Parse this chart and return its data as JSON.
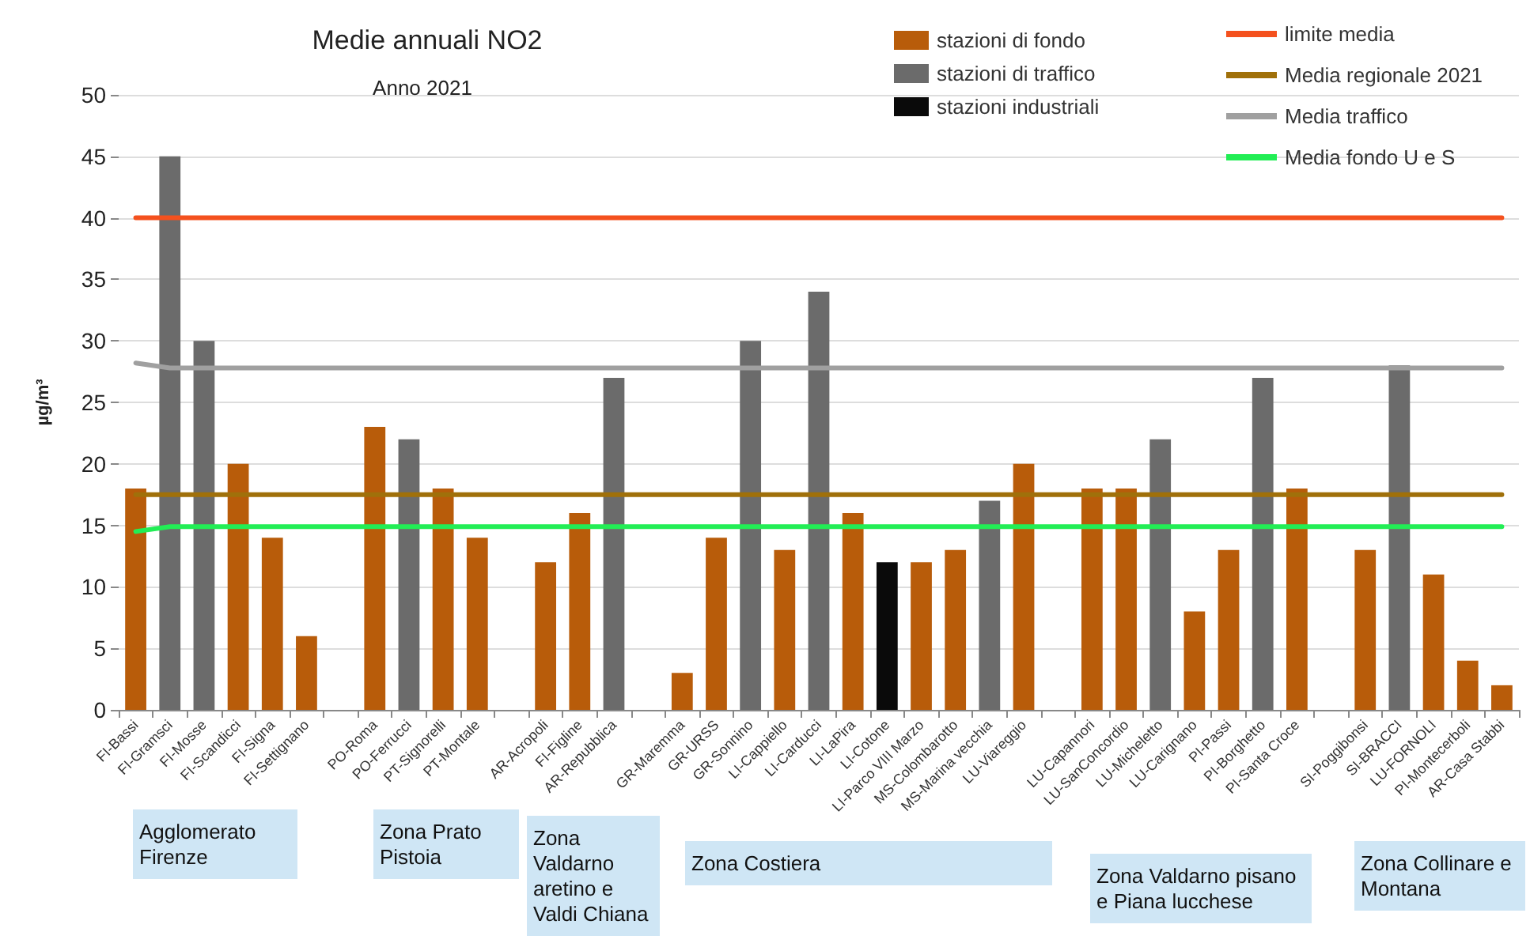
{
  "chart_data": {
    "type": "bar",
    "title": "Medie annuali NO2",
    "subtitle": "Anno 2021",
    "ylabel": "µg/m³",
    "categories": [
      "FI-Bassi",
      "FI-Gramsci",
      "FI-Mosse",
      "FI-Scandicci",
      "FI-Signa",
      "FI-Settignano",
      null,
      "PO-Roma",
      "PO-Ferrucci",
      "PT-Signorelli",
      "PT-Montale",
      null,
      "AR-Acropoli",
      "FI-Figline",
      "AR-Repubblica",
      null,
      "GR-Maremma",
      "GR-URSS",
      "GR-Sonnino",
      "LI-Cappiello",
      "LI-Carducci",
      "LI-LaPira",
      "LI-Cotone",
      "LI-Parco VIII Marzo",
      "MS-Colombarotto",
      "MS-Marina vecchia",
      "LU-Viareggio",
      null,
      "LU-Capannori",
      "LU-SanConcordio",
      "LU-Micheletto",
      "LU-Carignano",
      "PI-Passi",
      "PI-Borghetto",
      "PI-Santa Croce",
      null,
      "SI-Poggibonsi",
      "SI-BRACCI",
      "LU-FORNOLI",
      "PI-Montecerboli",
      "AR-Casa Stabbi"
    ],
    "series": [
      {
        "name": "stazioni di fondo",
        "color": "#b85c0a",
        "values": [
          18,
          null,
          null,
          20,
          14,
          6,
          null,
          23,
          null,
          18,
          14,
          null,
          12,
          16,
          null,
          null,
          3,
          14,
          null,
          13,
          null,
          16,
          null,
          12,
          13,
          null,
          20,
          null,
          18,
          18,
          null,
          8,
          13,
          null,
          18,
          null,
          13,
          null,
          11,
          4,
          2
        ]
      },
      {
        "name": "stazioni di traffico",
        "color": "#6b6b6b",
        "values": [
          null,
          45,
          30,
          null,
          null,
          null,
          null,
          null,
          22,
          null,
          null,
          null,
          null,
          null,
          27,
          null,
          null,
          null,
          30,
          null,
          34,
          null,
          null,
          null,
          null,
          17,
          null,
          null,
          null,
          null,
          22,
          null,
          null,
          27,
          null,
          null,
          null,
          28,
          null,
          null,
          null
        ]
      },
      {
        "name": "stazioni industriali",
        "color": "#0a0a0a",
        "values": [
          null,
          null,
          null,
          null,
          null,
          null,
          null,
          null,
          null,
          null,
          null,
          null,
          null,
          null,
          null,
          null,
          null,
          null,
          null,
          null,
          null,
          null,
          12,
          null,
          null,
          null,
          null,
          null,
          null,
          null,
          null,
          null,
          null,
          null,
          null,
          null,
          null,
          null,
          null,
          null,
          null
        ]
      },
      {
        "name": "limite media",
        "type": "line",
        "color": "#f4511e",
        "values": [
          40,
          40,
          40,
          40,
          40,
          40,
          40,
          40,
          40,
          40,
          40,
          40,
          40,
          40,
          40,
          40,
          40,
          40,
          40,
          40,
          40,
          40,
          40,
          40,
          40,
          40,
          40,
          40,
          40,
          40,
          40,
          40,
          40,
          40,
          40,
          40,
          40,
          40,
          40,
          40,
          40
        ]
      },
      {
        "name": "Media regionale 2021",
        "type": "line",
        "color": "#a0700a",
        "values": [
          17.5,
          17.5,
          17.5,
          17.5,
          17.5,
          17.5,
          17.5,
          17.5,
          17.5,
          17.5,
          17.5,
          17.5,
          17.5,
          17.5,
          17.5,
          17.5,
          17.5,
          17.5,
          17.5,
          17.5,
          17.5,
          17.5,
          17.5,
          17.5,
          17.5,
          17.5,
          17.5,
          17.5,
          17.5,
          17.5,
          17.5,
          17.5,
          17.5,
          17.5,
          17.5,
          17.5,
          17.5,
          17.5,
          17.5,
          17.5,
          17.5
        ]
      },
      {
        "name": "Media traffico",
        "type": "line",
        "color": "#a0a0a0",
        "values": [
          28.2,
          27.8,
          27.8,
          27.8,
          27.8,
          27.8,
          27.8,
          27.8,
          27.8,
          27.8,
          27.8,
          27.8,
          27.8,
          27.8,
          27.8,
          27.8,
          27.8,
          27.8,
          27.8,
          27.8,
          27.8,
          27.8,
          27.8,
          27.8,
          27.8,
          27.8,
          27.8,
          27.8,
          27.8,
          27.8,
          27.8,
          27.8,
          27.8,
          27.8,
          27.8,
          27.8,
          27.8,
          27.8,
          27.8,
          27.8,
          27.8
        ]
      },
      {
        "name": "Media fondo U e S",
        "type": "line",
        "color": "#22ee55",
        "values": [
          14.5,
          14.9,
          14.9,
          14.9,
          14.9,
          14.9,
          14.9,
          14.9,
          14.9,
          14.9,
          14.9,
          14.9,
          14.9,
          14.9,
          14.9,
          14.9,
          14.9,
          14.9,
          14.9,
          14.9,
          14.9,
          14.9,
          14.9,
          14.9,
          14.9,
          14.9,
          14.9,
          14.9,
          14.9,
          14.9,
          14.9,
          14.9,
          14.9,
          14.9,
          14.9,
          14.9,
          14.9,
          14.9,
          14.9,
          14.9,
          14.9
        ]
      }
    ],
    "ylim": [
      0,
      50
    ],
    "yticks": [
      0,
      5,
      10,
      15,
      20,
      25,
      30,
      35,
      40,
      45,
      50
    ],
    "grid": "y",
    "legend": "top right",
    "marker": "none",
    "annotations": [
      "Agglomerato Firenze",
      "Zona Prato Pistoia",
      "Zona Valdarno aretino e Valdi Chiana",
      "Zona Costiera",
      "Zona Valdarno pisano e Piana lucchese",
      "Zona Collinare e Montana"
    ]
  }
}
